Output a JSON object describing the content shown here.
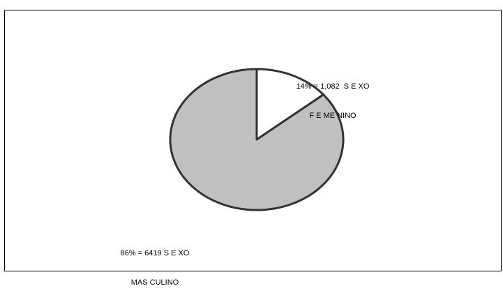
{
  "chart_data": {
    "type": "pie",
    "title": "",
    "slices": [
      {
        "category": "SEXO FEMENINO",
        "percent": 14,
        "value": 1082,
        "label_lines": [
          "14% = 1,082  S E XO",
          "F E ME NINO"
        ],
        "color": "#ffffff"
      },
      {
        "category": "SEXO MASCULINO",
        "percent": 86,
        "value": 6419,
        "label_lines": [
          "86% = 6419 S E XO",
          "MAS CULINO"
        ],
        "color": "#c0c0c0"
      }
    ],
    "start_angle_deg": 0,
    "direction": "clockwise",
    "legend": "none",
    "edge_color": "#333333"
  }
}
